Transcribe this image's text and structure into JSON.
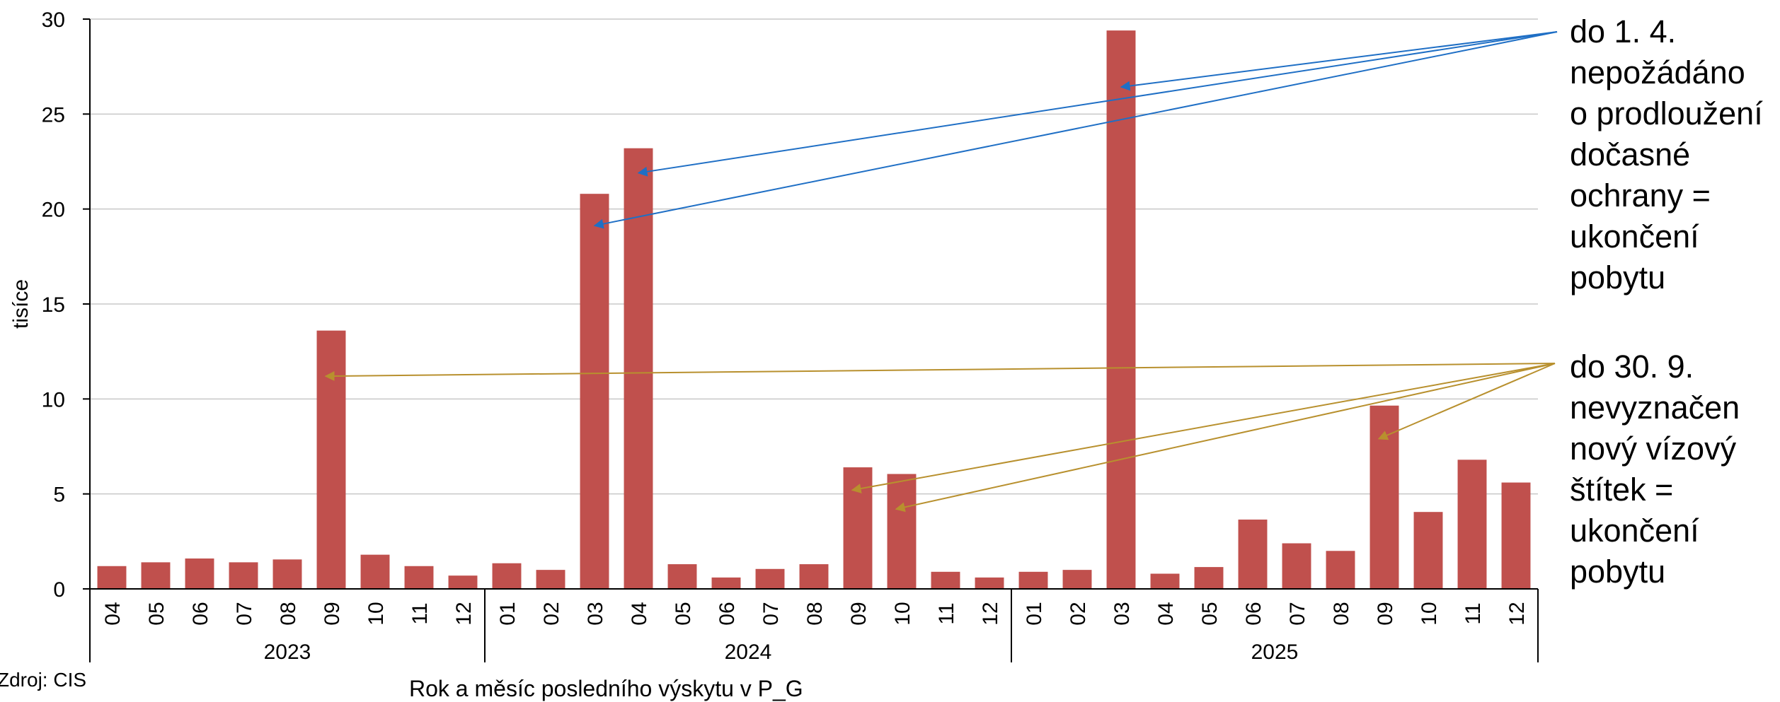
{
  "chart_data": {
    "type": "bar",
    "title": "",
    "ylabel": "tisíce",
    "xlabel": "Rok a měsíc posledního výskytu v P_G",
    "ylim": [
      0,
      30
    ],
    "yticks": [
      0,
      5,
      10,
      15,
      20,
      25,
      30
    ],
    "grid": true,
    "bar_color": "#c0504d",
    "groups": [
      {
        "year": "2023",
        "months": [
          "04",
          "05",
          "06",
          "07",
          "08",
          "09",
          "10",
          "11",
          "12"
        ]
      },
      {
        "year": "2024",
        "months": [
          "01",
          "02",
          "03",
          "04",
          "05",
          "06",
          "07",
          "08",
          "09",
          "10",
          "11",
          "12"
        ]
      },
      {
        "year": "2025",
        "months": [
          "01",
          "02",
          "03",
          "04",
          "05",
          "06",
          "07",
          "08",
          "09",
          "10",
          "11",
          "12"
        ]
      }
    ],
    "values": [
      1.2,
      1.4,
      1.6,
      1.4,
      1.55,
      13.6,
      1.8,
      1.2,
      0.7,
      1.35,
      1.0,
      20.8,
      23.2,
      1.3,
      0.6,
      1.05,
      1.3,
      6.4,
      6.05,
      0.9,
      0.6,
      0.9,
      1.0,
      29.4,
      0.8,
      1.15,
      3.65,
      2.4,
      2.0,
      9.65,
      4.05,
      6.8,
      5.6
    ],
    "annotations": [
      {
        "lines": [
          "do 1. 4.",
          "nepožádáno",
          "o prodloužení",
          "dočasné",
          "ochrany =",
          "ukončení",
          "pobytu"
        ],
        "color": "#1f6fc5",
        "targets": [
          12,
          11,
          23
        ]
      },
      {
        "lines": [
          "do 30. 9.",
          "nevyznačen",
          "nový vízový",
          "štítek =",
          "ukončení",
          "pobytu"
        ],
        "color": "#b8902e",
        "targets": [
          5,
          17,
          18,
          29
        ]
      }
    ]
  },
  "source": "Zdroj: CIS"
}
